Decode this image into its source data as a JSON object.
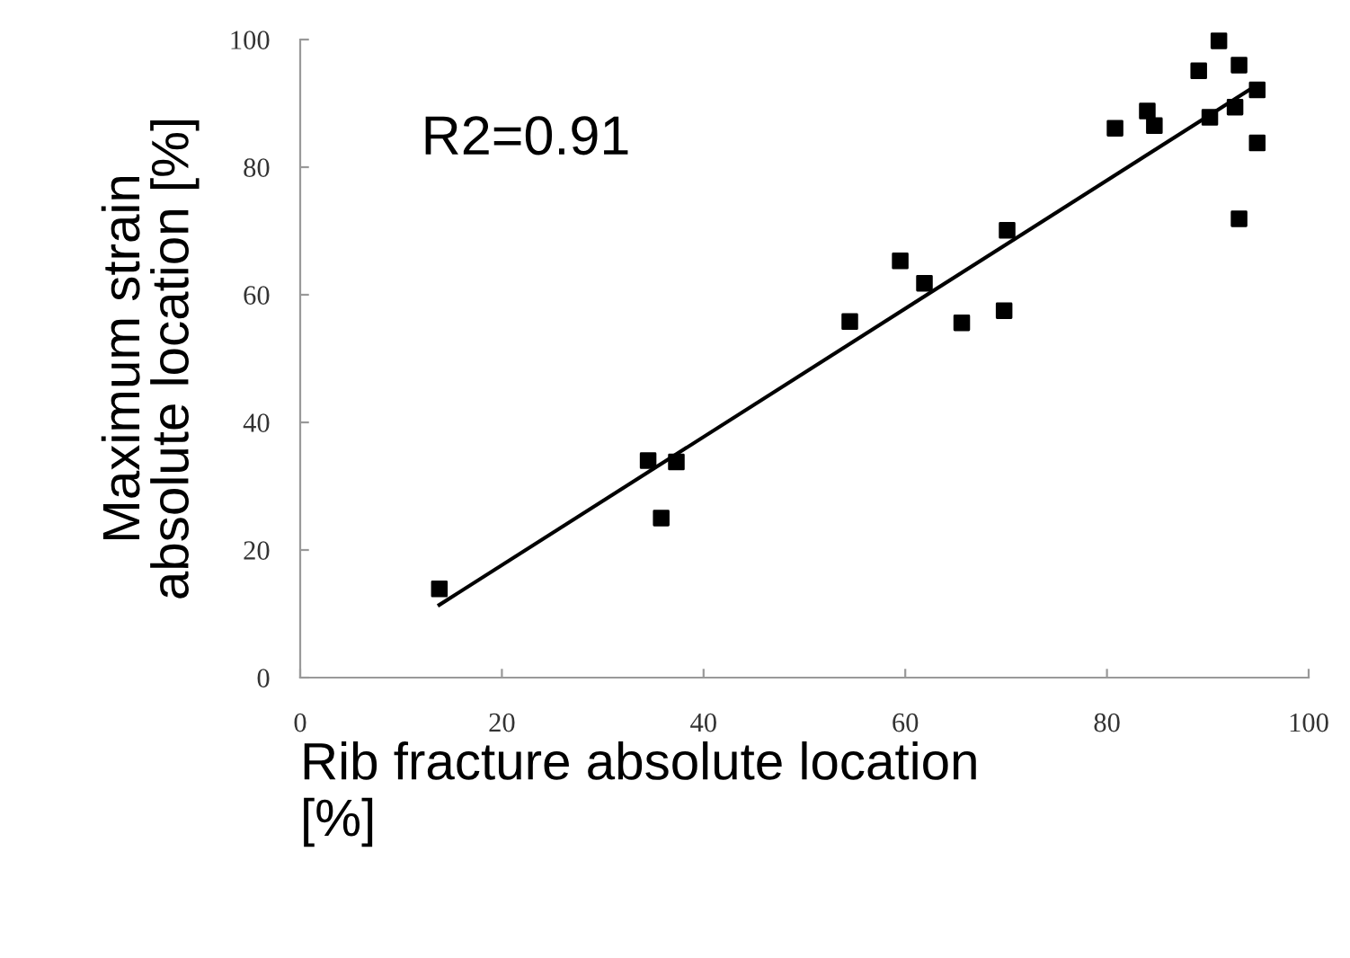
{
  "chart_data": {
    "type": "scatter",
    "xlabel": "Rib fracture absolute location\n[%]",
    "ylabel": "Maximum strain\nabsolute location [%]",
    "annotations": [
      "R2=0.91"
    ],
    "xlim": [
      0,
      100
    ],
    "xticks": [
      0,
      20,
      40,
      60,
      80,
      100
    ],
    "ylim": [
      0,
      100
    ],
    "yticks": [
      0,
      20,
      40,
      60,
      80,
      100
    ],
    "grid": false,
    "marker": "square",
    "legend": false,
    "series": [
      {
        "color": "#000000",
        "x": [
          13.8,
          34.5,
          35.8,
          37.3,
          54.5,
          59.5,
          61.9,
          65.6,
          69.8,
          70.1,
          80.8,
          84.0,
          84.7,
          89.1,
          91.1,
          90.2,
          92.7,
          93.1,
          93.1,
          94.9,
          94.9
        ],
        "values": [
          13.9,
          34.0,
          25.0,
          33.8,
          55.8,
          65.3,
          61.8,
          55.6,
          57.5,
          70.1,
          86.1,
          88.8,
          86.5,
          95.1,
          99.8,
          87.8,
          89.4,
          96.0,
          71.9,
          92.1,
          83.8
        ]
      },
      {
        "type": "line",
        "color": "#000000",
        "marker": "none",
        "line_style": "solid",
        "x": [
          13.8,
          94.8
        ],
        "values": [
          11.4,
          92.8
        ]
      }
    ]
  }
}
